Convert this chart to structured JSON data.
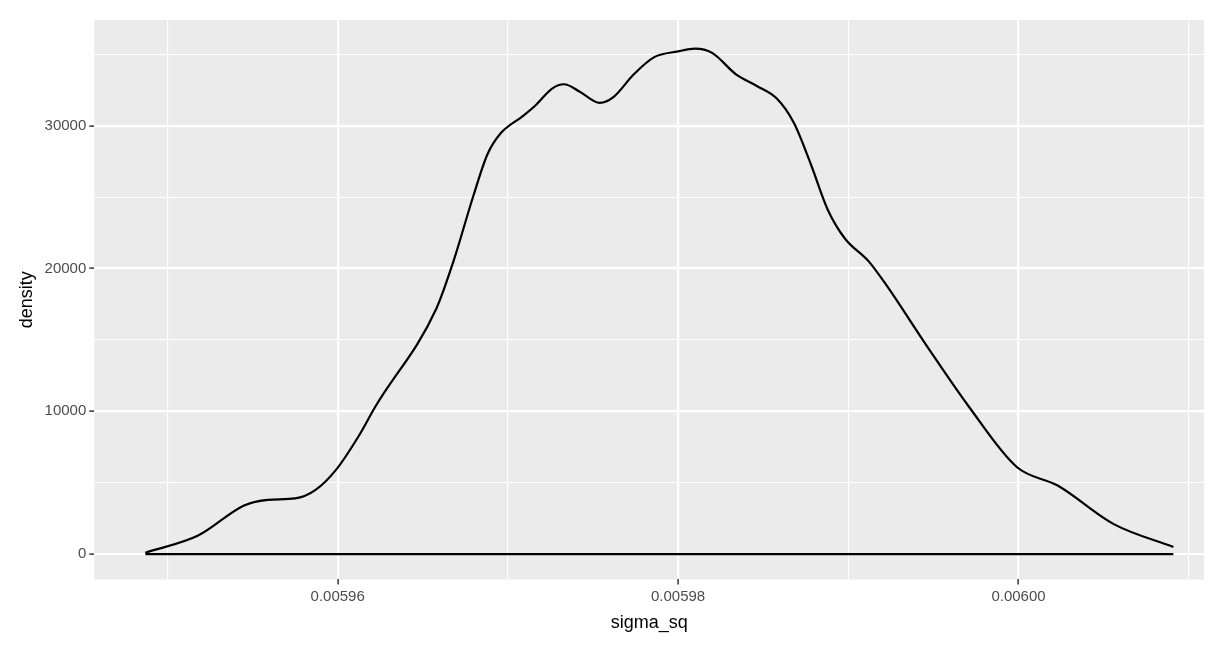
{
  "chart_data": {
    "type": "line",
    "xlabel": "sigma_sq",
    "ylabel": "density",
    "grid": true,
    "xlim": [
      0.0059457,
      0.0060109
    ],
    "ylim": [
      -1770,
      37400
    ],
    "xticks": [
      {
        "value": 0.00595,
        "label": null
      },
      {
        "value": 0.00596,
        "label": "0.00596"
      },
      {
        "value": 0.00597,
        "label": null
      },
      {
        "value": 0.00598,
        "label": "0.00598"
      },
      {
        "value": 0.00599,
        "label": null
      },
      {
        "value": 0.006,
        "label": "0.00600"
      },
      {
        "value": 0.00601,
        "label": null
      }
    ],
    "yticks": [
      0,
      {
        "value": 5000,
        "label": null
      },
      10000,
      {
        "value": 15000,
        "label": null
      },
      20000,
      {
        "value": 25000,
        "label": null
      },
      30000,
      {
        "value": 35000,
        "label": null
      }
    ],
    "series": [
      {
        "color": "#000000",
        "x": [
          0.0059487,
          0.0059518,
          0.0059545,
          0.0059559,
          0.0059575,
          0.0059587,
          0.0059599,
          0.0059612,
          0.0059622,
          0.0059658,
          0.0059668,
          0.005968,
          0.0059688,
          0.0059696,
          0.0059708,
          0.0059716,
          0.0059726,
          0.0059733,
          0.0059742,
          0.0059754,
          0.0059762,
          0.0059774,
          0.0059786,
          0.00598,
          0.005981,
          0.005982,
          0.0059834,
          0.0059846,
          0.0059858,
          0.0059868,
          0.0059878,
          0.0059888,
          0.0059898,
          0.0059912,
          0.0059922,
          0.0059946,
          0.0059971,
          0.0059999,
          0.0060023,
          0.0060056,
          0.0060091
        ],
        "values": [
          100,
          1300,
          3400,
          3800,
          3900,
          4500,
          5900,
          8200,
          10300,
          17200,
          20500,
          25200,
          28000,
          29500,
          30600,
          31400,
          32600,
          32900,
          32400,
          31600,
          32000,
          33600,
          34800,
          35200,
          35400,
          35100,
          33600,
          32800,
          31900,
          30200,
          27300,
          24100,
          22100,
          20500,
          18900,
          14600,
          10300,
          6100,
          4800,
          2100,
          500
        ]
      },
      {
        "color": "#000000",
        "x": [
          0.0059487,
          0.0060091
        ],
        "values": [
          0,
          0
        ]
      }
    ]
  }
}
